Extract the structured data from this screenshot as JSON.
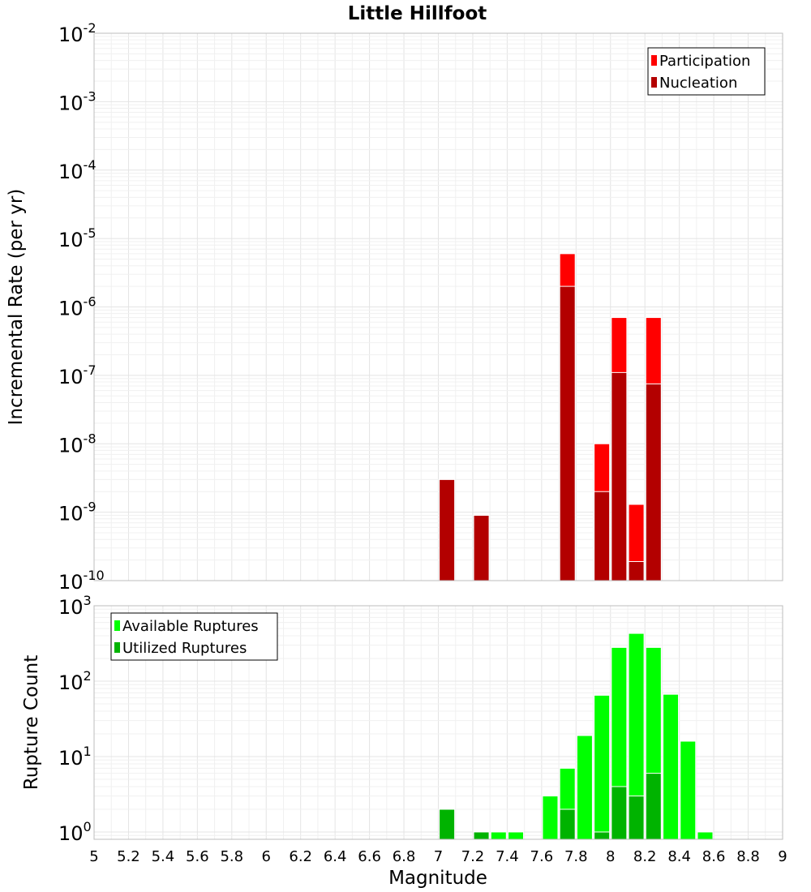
{
  "chart_data": [
    {
      "type": "bar",
      "title": "Little Hillfoot",
      "xlabel": "",
      "ylabel": "Incremental Rate (per yr)",
      "yscale": "log",
      "ylim": [
        1e-10,
        0.01
      ],
      "xlim": [
        5,
        9
      ],
      "grid": true,
      "legend_position": "top-right",
      "ytick_labels": [
        {
          "v": 1e-10,
          "base": "10",
          "exp": "-10"
        },
        {
          "v": 1e-09,
          "base": "10",
          "exp": "-9"
        },
        {
          "v": 1e-08,
          "base": "10",
          "exp": "-8"
        },
        {
          "v": 1e-07,
          "base": "10",
          "exp": "-7"
        },
        {
          "v": 1e-06,
          "base": "10",
          "exp": "-6"
        },
        {
          "v": 1e-05,
          "base": "10",
          "exp": "-5"
        },
        {
          "v": 0.0001,
          "base": "10",
          "exp": "-4"
        },
        {
          "v": 0.001,
          "base": "10",
          "exp": "-3"
        },
        {
          "v": 0.01,
          "base": "10",
          "exp": "-2"
        }
      ],
      "series": [
        {
          "name": "Participation",
          "color": "#ff0000",
          "x": [
            7.05,
            7.25,
            7.75,
            7.95,
            8.05,
            8.15,
            8.25
          ],
          "values": [
            3e-09,
            9e-10,
            6e-06,
            1e-08,
            7e-07,
            1.3e-09,
            7e-07
          ]
        },
        {
          "name": "Nucleation",
          "color": "#b30000",
          "x": [
            7.05,
            7.25,
            7.75,
            7.95,
            8.05,
            8.15,
            8.25
          ],
          "values": [
            3e-09,
            9e-10,
            2e-06,
            2e-09,
            1.1e-07,
            1.9e-10,
            7.5e-08
          ]
        }
      ]
    },
    {
      "type": "bar",
      "title": "",
      "xlabel": "Magnitude",
      "ylabel": "Rupture Count",
      "yscale": "log",
      "ylim": [
        0.8,
        1000
      ],
      "xlim": [
        5,
        9
      ],
      "grid": true,
      "legend_position": "top-left",
      "xtick_labels": [
        "5",
        "5.2",
        "5.4",
        "5.6",
        "5.8",
        "6",
        "6.2",
        "6.4",
        "6.6",
        "6.8",
        "7",
        "7.2",
        "7.4",
        "7.6",
        "7.8",
        "8",
        "8.2",
        "8.4",
        "8.6",
        "8.8",
        "9"
      ],
      "ytick_labels": [
        {
          "v": 1,
          "base": "10",
          "exp": "0"
        },
        {
          "v": 10,
          "base": "10",
          "exp": "1"
        },
        {
          "v": 100,
          "base": "10",
          "exp": "2"
        },
        {
          "v": 1000,
          "base": "10",
          "exp": "3"
        }
      ],
      "series": [
        {
          "name": "Available Ruptures",
          "color": "#00ff00",
          "x": [
            7.05,
            7.25,
            7.35,
            7.45,
            7.65,
            7.75,
            7.85,
            7.95,
            8.05,
            8.15,
            8.25,
            8.35,
            8.45,
            8.55
          ],
          "values": [
            2,
            1,
            1,
            1,
            3,
            7,
            19,
            65,
            280,
            430,
            280,
            67,
            16,
            1
          ]
        },
        {
          "name": "Utilized Ruptures",
          "color": "#00b300",
          "x": [
            7.05,
            7.25,
            7.75,
            7.95,
            8.05,
            8.15,
            8.25
          ],
          "values": [
            2,
            1,
            2,
            1,
            4,
            3,
            6
          ]
        }
      ]
    }
  ]
}
